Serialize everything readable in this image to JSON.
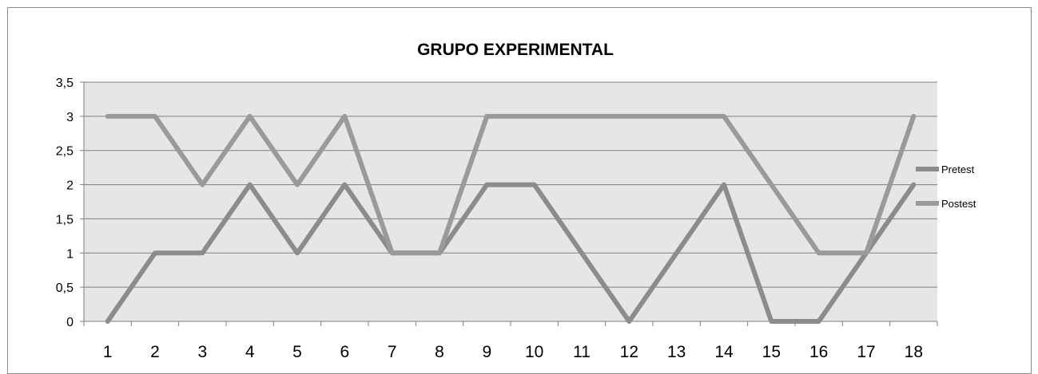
{
  "chart_data": {
    "type": "line",
    "title": "GRUPO EXPERIMENTAL",
    "xlabel": "",
    "ylabel": "",
    "categories": [
      "1",
      "2",
      "3",
      "4",
      "5",
      "6",
      "7",
      "8",
      "9",
      "10",
      "11",
      "12",
      "13",
      "14",
      "15",
      "16",
      "17",
      "18"
    ],
    "ylim": [
      0,
      3.5
    ],
    "yticks": [
      "0",
      "0,5",
      "1",
      "1,5",
      "2",
      "2,5",
      "3",
      "3,5"
    ],
    "ytick_values": [
      0,
      0.5,
      1,
      1.5,
      2,
      2.5,
      3,
      3.5
    ],
    "grid": true,
    "legend_position": "right",
    "series": [
      {
        "name": "Pretest",
        "color": "#8c8c8c",
        "values": [
          0,
          1,
          1,
          2,
          1,
          2,
          1,
          1,
          2,
          2,
          1,
          0,
          1,
          2,
          0,
          0,
          1,
          2
        ]
      },
      {
        "name": "Postest",
        "color": "#9a9a9a",
        "values": [
          3,
          3,
          2,
          3,
          2,
          3,
          1,
          1,
          3,
          3,
          3,
          3,
          3,
          3,
          2,
          1,
          1,
          3
        ]
      }
    ]
  }
}
